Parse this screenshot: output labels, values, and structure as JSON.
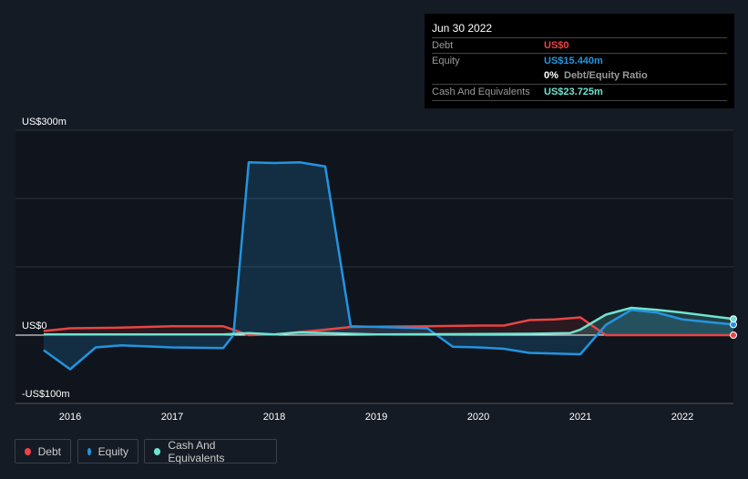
{
  "tooltip": {
    "date": "Jun 30 2022",
    "debt_label": "Debt",
    "debt_value": "US$0",
    "equity_label": "Equity",
    "equity_value": "US$15.440m",
    "ratio_value": "0%",
    "ratio_label": "Debt/Equity Ratio",
    "cash_label": "Cash And Equivalents",
    "cash_value": "US$23.725m"
  },
  "legend": [
    "Debt",
    "Equity",
    "Cash And Equivalents"
  ],
  "colors": {
    "debt": "#e84545",
    "equity": "#2394df",
    "cash": "#6fe3d0"
  },
  "chart_data": {
    "type": "line",
    "ylim": [
      -100,
      300
    ],
    "y_tick_labels": [
      "US$300m",
      "US$0",
      "-US$100m"
    ],
    "y_ticks": [
      300,
      0,
      -100
    ],
    "x_tick_labels": [
      "2016",
      "2017",
      "2018",
      "2019",
      "2020",
      "2021",
      "2022"
    ],
    "xlim": [
      2015.47,
      2022.5
    ],
    "series": [
      {
        "name": "Debt",
        "key": "debt",
        "x": [
          2015.74,
          2016,
          2016.5,
          2017,
          2017.5,
          2017.75,
          2018,
          2018.5,
          2018.75,
          2019.5,
          2020,
          2020.25,
          2020.5,
          2020.75,
          2021,
          2021.25,
          2022.5
        ],
        "values": [
          6,
          10,
          11,
          13,
          13,
          0,
          1,
          8,
          12,
          13,
          14,
          14,
          22,
          23,
          26,
          0,
          0
        ]
      },
      {
        "name": "Equity",
        "key": "equity",
        "x": [
          2015.74,
          2016,
          2016.25,
          2016.5,
          2017,
          2017.5,
          2017.6,
          2017.75,
          2018,
          2018.25,
          2018.5,
          2018.75,
          2019,
          2019.5,
          2019.75,
          2020,
          2020.25,
          2020.5,
          2021,
          2021.25,
          2021.5,
          2021.75,
          2022,
          2022.5
        ],
        "values": [
          -22,
          -50,
          -18,
          -15,
          -18,
          -19,
          0,
          253,
          252,
          253,
          247,
          13,
          12,
          10,
          -17,
          -18,
          -20,
          -26,
          -28,
          15,
          37,
          33,
          23,
          15.44
        ]
      },
      {
        "name": "Cash And Equivalents",
        "key": "cash",
        "x": [
          2015.74,
          2017.5,
          2017.75,
          2018,
          2018.25,
          2018.5,
          2019,
          2020.5,
          2020.9,
          2021,
          2021.25,
          2021.5,
          2021.75,
          2022,
          2022.5
        ],
        "values": [
          1,
          1,
          3,
          1,
          4,
          3,
          1,
          2,
          3,
          8,
          30,
          40,
          37,
          33,
          23.725
        ]
      }
    ]
  }
}
